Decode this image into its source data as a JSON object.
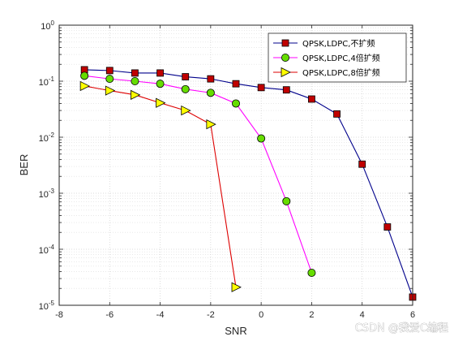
{
  "chart_data": {
    "type": "line",
    "title": "",
    "xlabel": "SNR",
    "ylabel": "BER",
    "xlim": [
      -8,
      6
    ],
    "ylim": [
      1e-05,
      1
    ],
    "y_scale": "log",
    "grid": true,
    "minor_grid": true,
    "legend_position": "top-right",
    "x_ticks": [
      "-8",
      "-6",
      "-4",
      "-2",
      "0",
      "2",
      "4",
      "6"
    ],
    "y_ticks": [
      {
        "base": "10",
        "exp": "-5",
        "value": 1e-05
      },
      {
        "base": "10",
        "exp": "-4",
        "value": 0.0001
      },
      {
        "base": "10",
        "exp": "-3",
        "value": 0.001
      },
      {
        "base": "10",
        "exp": "-2",
        "value": 0.01
      },
      {
        "base": "10",
        "exp": "-1",
        "value": 0.1
      },
      {
        "base": "10",
        "exp": "0",
        "value": 1
      }
    ],
    "series": [
      {
        "name": "QPSK,LDPC,不扩频",
        "line_color": "#00008b",
        "marker": "square",
        "marker_fill": "#c00000",
        "x": [
          -7,
          -6,
          -5,
          -4,
          -3,
          -2,
          -1,
          0,
          1,
          2,
          3,
          4,
          5,
          6
        ],
        "y": [
          0.16,
          0.155,
          0.14,
          0.14,
          0.12,
          0.11,
          0.09,
          0.077,
          0.07,
          0.048,
          0.026,
          0.0033,
          0.00025,
          1.4e-05
        ]
      },
      {
        "name": "QPSK,LDPC,4倍扩频",
        "line_color": "#ff00ff",
        "marker": "circle",
        "marker_fill": "#66dd00",
        "x": [
          -7,
          -6,
          -5,
          -4,
          -3,
          -2,
          -1,
          0,
          1,
          2
        ],
        "y": [
          0.125,
          0.11,
          0.1,
          0.09,
          0.072,
          0.062,
          0.04,
          0.0095,
          0.00072,
          3.8e-05
        ]
      },
      {
        "name": "QPSK,LDPC,8倍扩频",
        "line_color": "#dd0000",
        "marker": "triangle-right",
        "marker_fill": "#ffff00",
        "x": [
          -7,
          -6,
          -5,
          -4,
          -3,
          -2,
          -1
        ],
        "y": [
          0.082,
          0.068,
          0.057,
          0.041,
          0.03,
          0.017,
          2.1e-05
        ]
      }
    ]
  },
  "watermark": "CSDN @我爱C编程"
}
